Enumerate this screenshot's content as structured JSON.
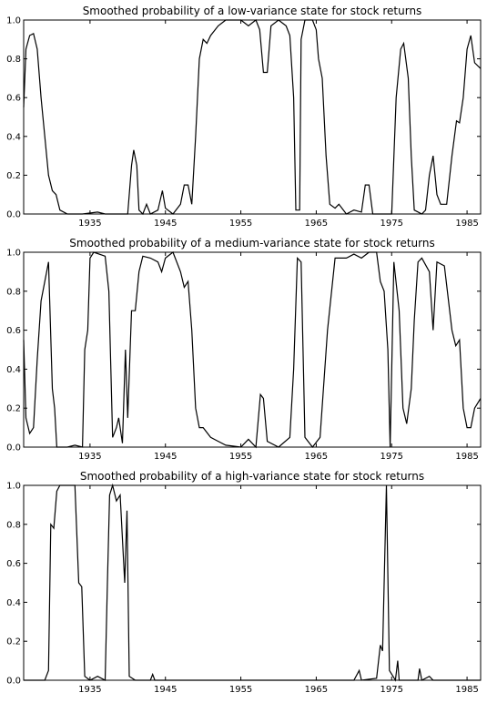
{
  "chart_data": [
    {
      "type": "line",
      "title": "Smoothed probability of a low-variance state for stock returns",
      "color": "#000000",
      "x": [
        1926.2,
        1926.5,
        1927,
        1927.5,
        1928,
        1928.5,
        1929,
        1929.5,
        1930,
        1930.5,
        1931,
        1932,
        1934,
        1936,
        1937,
        1940,
        1940.5,
        1940.8,
        1941.2,
        1941.5,
        1942,
        1942.5,
        1943,
        1944,
        1944.6,
        1945,
        1946,
        1947,
        1947.5,
        1948,
        1948.5,
        1949,
        1949.5,
        1950,
        1950.5,
        1951,
        1952,
        1953,
        1955,
        1956,
        1957,
        1957.5,
        1958,
        1958.5,
        1959,
        1960,
        1961,
        1961.5,
        1962,
        1962.3,
        1962.8,
        1963,
        1963.5,
        1964.5,
        1965,
        1965.3,
        1965.8,
        1966.3,
        1966.8,
        1967.5,
        1968,
        1969,
        1970,
        1971,
        1971.5,
        1972,
        1972.5,
        1974,
        1975,
        1975.6,
        1976.2,
        1976.6,
        1977.2,
        1977.6,
        1978,
        1979,
        1979.5,
        1980,
        1980.5,
        1981,
        1981.5,
        1982.3,
        1983,
        1983.6,
        1984,
        1984.5,
        1985,
        1985.5,
        1986,
        1986.8
      ],
      "values": [
        0.55,
        0.85,
        0.92,
        0.93,
        0.85,
        0.6,
        0.4,
        0.2,
        0.12,
        0.1,
        0.02,
        0.0,
        0.0,
        0.01,
        0.0,
        0.0,
        0.25,
        0.33,
        0.25,
        0.02,
        0.0,
        0.05,
        0.0,
        0.02,
        0.12,
        0.03,
        0.0,
        0.05,
        0.15,
        0.15,
        0.05,
        0.4,
        0.8,
        0.9,
        0.88,
        0.92,
        0.97,
        1.0,
        1.0,
        0.97,
        1.0,
        0.95,
        0.73,
        0.73,
        0.97,
        1.0,
        0.97,
        0.92,
        0.6,
        0.02,
        0.02,
        0.9,
        1.0,
        1.0,
        0.95,
        0.8,
        0.7,
        0.3,
        0.05,
        0.03,
        0.05,
        0.0,
        0.02,
        0.01,
        0.15,
        0.15,
        0.0,
        0.0,
        0.0,
        0.6,
        0.85,
        0.88,
        0.7,
        0.3,
        0.02,
        0.0,
        0.02,
        0.2,
        0.3,
        0.1,
        0.05,
        0.05,
        0.3,
        0.48,
        0.47,
        0.6,
        0.85,
        0.92,
        0.78,
        0.75
      ],
      "xlim": [
        1926.2,
        1986.8
      ],
      "xticks": [
        1935,
        1945,
        1955,
        1965,
        1975,
        1985
      ],
      "ylim": [
        0,
        1
      ],
      "yticks": [
        {
          "value": 0,
          "label": "0.0"
        },
        0.2,
        0.4,
        0.6,
        0.8,
        {
          "value": 1,
          "label": "1.0"
        }
      ]
    },
    {
      "type": "line",
      "title": "Smoothed probability of a medium-variance state for stock returns",
      "color": "#000000",
      "x": [
        1926.2,
        1926.5,
        1927,
        1927.5,
        1928,
        1928.5,
        1929,
        1929.5,
        1930,
        1930.3,
        1930.6,
        1932,
        1933,
        1934,
        1934.3,
        1934.7,
        1935,
        1935.5,
        1937,
        1937.5,
        1938,
        1938.5,
        1938.8,
        1939.3,
        1939.7,
        1940,
        1940.5,
        1941,
        1941.5,
        1942,
        1943,
        1944,
        1944.5,
        1945,
        1946,
        1947,
        1947.5,
        1948,
        1948.5,
        1949,
        1949.5,
        1950,
        1951,
        1952,
        1953,
        1955,
        1956,
        1957,
        1957.6,
        1958,
        1958.5,
        1960,
        1961.5,
        1962,
        1962.5,
        1963,
        1963.5,
        1964.5,
        1965.5,
        1966.5,
        1967.5,
        1969,
        1970,
        1971,
        1972,
        1973,
        1973.5,
        1974,
        1974.5,
        1974.8,
        1975.3,
        1976,
        1976.5,
        1977,
        1977.6,
        1978,
        1978.5,
        1979,
        1980,
        1980.5,
        1981,
        1982,
        1983,
        1983.5,
        1984,
        1984.5,
        1985,
        1985.5,
        1986,
        1986.8
      ],
      "values": [
        0.55,
        0.15,
        0.07,
        0.1,
        0.45,
        0.75,
        0.85,
        0.95,
        0.3,
        0.2,
        0.0,
        0.0,
        0.01,
        0.0,
        0.5,
        0.6,
        0.97,
        1.0,
        0.98,
        0.8,
        0.05,
        0.1,
        0.15,
        0.02,
        0.5,
        0.15,
        0.7,
        0.7,
        0.9,
        0.98,
        0.97,
        0.95,
        0.9,
        0.97,
        1.0,
        0.9,
        0.82,
        0.85,
        0.6,
        0.2,
        0.1,
        0.1,
        0.05,
        0.03,
        0.01,
        0.0,
        0.04,
        0.0,
        0.27,
        0.25,
        0.03,
        0.0,
        0.05,
        0.4,
        0.97,
        0.95,
        0.05,
        0.0,
        0.05,
        0.6,
        0.97,
        0.97,
        0.99,
        0.97,
        1.0,
        1.0,
        0.85,
        0.8,
        0.5,
        0.0,
        0.95,
        0.7,
        0.2,
        0.12,
        0.3,
        0.65,
        0.95,
        0.97,
        0.9,
        0.6,
        0.95,
        0.93,
        0.6,
        0.52,
        0.55,
        0.2,
        0.1,
        0.1,
        0.2,
        0.25
      ],
      "xlim": [
        1926.2,
        1986.8
      ],
      "xticks": [
        1935,
        1945,
        1955,
        1965,
        1975,
        1985
      ],
      "ylim": [
        0,
        1
      ],
      "yticks": [
        {
          "value": 0,
          "label": "0.0"
        },
        0.2,
        0.4,
        0.6,
        0.8,
        {
          "value": 1,
          "label": "1.0"
        }
      ]
    },
    {
      "type": "line",
      "title": "Smoothed probability of a high-variance state for stock returns",
      "color": "#000000",
      "x": [
        1926.2,
        1929,
        1929.5,
        1929.8,
        1930.2,
        1930.6,
        1931,
        1933,
        1933.5,
        1933.9,
        1934.3,
        1935,
        1936,
        1937,
        1937.3,
        1937.6,
        1938,
        1938.5,
        1939,
        1939.6,
        1939.9,
        1940.2,
        1941,
        1943,
        1943.3,
        1943.6,
        1970,
        1970.7,
        1971,
        1973,
        1973.5,
        1973.8,
        1974.3,
        1974.7,
        1975.5,
        1975.8,
        1976,
        1978.5,
        1978.7,
        1979,
        1980,
        1980.5,
        1986.8
      ],
      "values": [
        0.0,
        0.0,
        0.05,
        0.8,
        0.78,
        0.97,
        1.0,
        1.0,
        0.5,
        0.48,
        0.02,
        0.0,
        0.02,
        0.0,
        0.5,
        0.95,
        1.0,
        0.92,
        0.95,
        0.5,
        0.87,
        0.02,
        0.0,
        0.0,
        0.03,
        0.0,
        0.0,
        0.05,
        0.0,
        0.01,
        0.18,
        0.15,
        1.0,
        0.05,
        0.0,
        0.1,
        0.0,
        0.0,
        0.06,
        0.0,
        0.02,
        0.0,
        0.0
      ],
      "xlim": [
        1926.2,
        1986.8
      ],
      "xticks": [
        1935,
        1945,
        1955,
        1965,
        1975,
        1985
      ],
      "ylim": [
        0,
        1
      ],
      "yticks": [
        {
          "value": 0,
          "label": "0.0"
        },
        0.2,
        0.4,
        0.6,
        0.8,
        {
          "value": 1,
          "label": "1.0"
        }
      ]
    }
  ]
}
